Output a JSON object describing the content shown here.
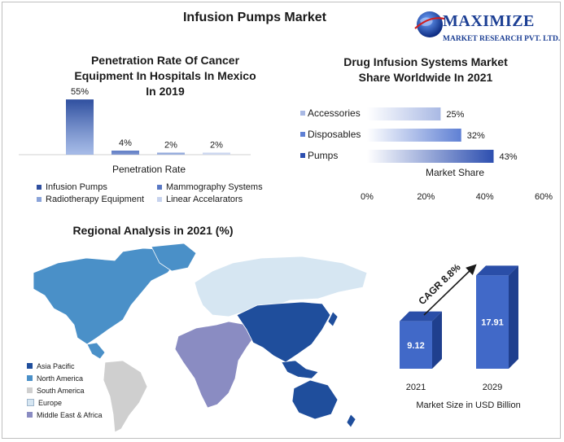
{
  "page": {
    "title": "Infusion Pumps Market"
  },
  "logo": {
    "name": "MAXIMIZE",
    "subtitle": "MARKET RESEARCH PVT. LTD."
  },
  "cancer_chart": {
    "title_lines": [
      "Penetration Rate Of Cancer",
      "Equipment In Hospitals In Mexico",
      "In 2019"
    ],
    "chart_data": {
      "type": "bar",
      "title": "Penetration Rate Of Cancer Equipment In Hospitals In Mexico In 2019",
      "xlabel": "Penetration Rate",
      "categories": [
        "Infusion Pumps",
        "Mammography Systems",
        "Radiotherapy Equipment",
        "Linear Accelarators"
      ],
      "values": [
        55,
        4,
        2,
        2
      ],
      "value_labels": [
        "55%",
        "4%",
        "2%",
        "2%"
      ],
      "ylim": [
        0,
        60
      ],
      "colors": [
        "#2f4f9f",
        "#5a78c4",
        "#8aa3d9",
        "#c7d3ee"
      ],
      "legend_position": "bottom"
    }
  },
  "drug_chart": {
    "title_lines": [
      "Drug Infusion Systems Market",
      "Share Worldwide In 2021"
    ],
    "chart_data": {
      "type": "bar",
      "orientation": "horizontal",
      "title": "Drug Infusion Systems Market Share Worldwide In 2021",
      "xlabel": "Market Share",
      "categories": [
        "Accessories",
        "Disposables",
        "Pumps"
      ],
      "values": [
        25,
        32,
        43
      ],
      "value_labels": [
        "25%",
        "32%",
        "43%"
      ],
      "x_ticks": [
        "0%",
        "20%",
        "40%",
        "60%"
      ],
      "xlim": [
        0,
        60
      ],
      "colors": [
        "#a9b9e4",
        "#5f80d4",
        "#2d4fb0"
      ]
    }
  },
  "map": {
    "title": "Regional Analysis in 2021 (%)",
    "legend": [
      {
        "name": "Asia Pacific",
        "color": "#1f4e9c"
      },
      {
        "name": "North America",
        "color": "#4a90c8"
      },
      {
        "name": "South America",
        "color": "#cfcfcf"
      },
      {
        "name": "Europe",
        "color": "#d6e6f2"
      },
      {
        "name": "Middle East & Africa",
        "color": "#8a8cc2"
      }
    ]
  },
  "cagr_chart": {
    "cagr_label": "CAGR 8.8%",
    "chart_data": {
      "type": "bar",
      "categories": [
        "2021",
        "2029"
      ],
      "values": [
        9.12,
        17.91
      ],
      "value_labels": [
        "9.12",
        "17.91"
      ],
      "xlabel": "Market Size in USD Billion",
      "ylim": [
        0,
        20
      ],
      "color": "#4169c8"
    }
  }
}
